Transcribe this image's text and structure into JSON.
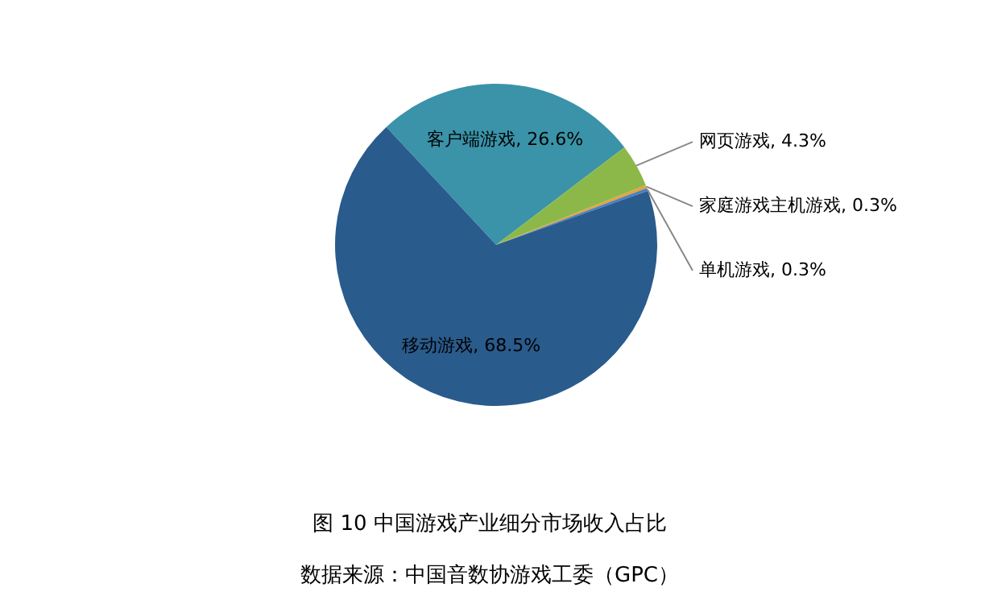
{
  "chart_data": {
    "type": "pie",
    "title": "图 10  中国游戏产业细分市场收入占比",
    "categories": [
      "客户端游戏",
      "网页游戏",
      "家庭游戏主机游戏",
      "单机游戏",
      "移动游戏"
    ],
    "values": [
      26.6,
      4.3,
      0.3,
      0.3,
      68.5
    ],
    "value_labels": [
      "26.6%",
      "4.3%",
      "0.3%",
      "0.3%",
      "68.5%"
    ],
    "colors": [
      "#3a93a8",
      "#8cb84a",
      "#e6a23c",
      "#4a7fc0",
      "#295b8c"
    ],
    "annotations": [
      "数据来源：中国音数协游戏工委（GPC）"
    ]
  }
}
